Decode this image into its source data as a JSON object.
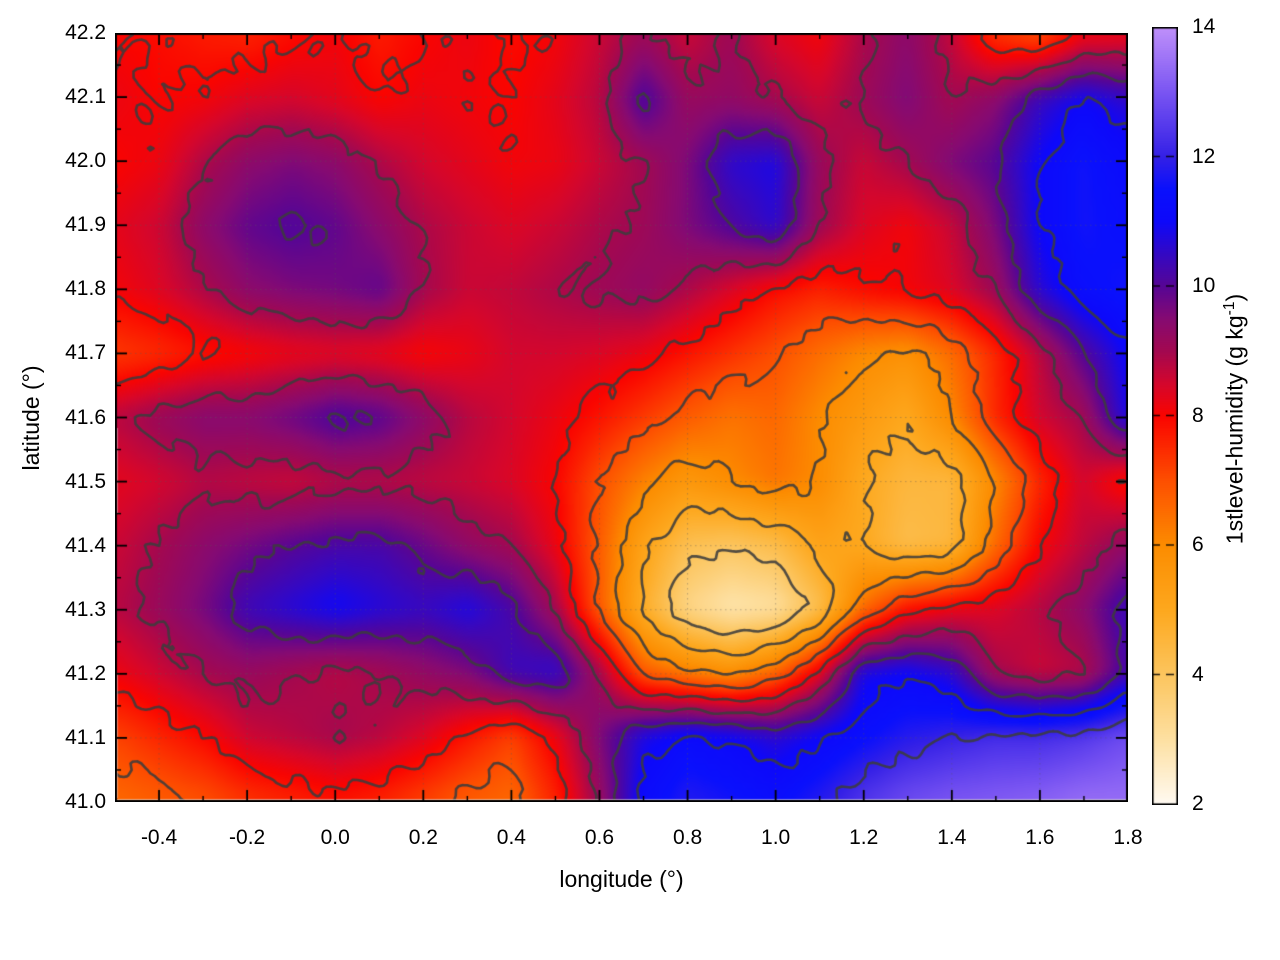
{
  "figure": {
    "background": "#ffffff"
  },
  "axes": {
    "xlabel": "longitude (°)",
    "ylabel": "latitude (°)",
    "xlim": [
      -0.5,
      1.8
    ],
    "ylim": [
      41.0,
      42.2
    ],
    "xticks": {
      "values": [
        -0.4,
        -0.2,
        0.0,
        0.2,
        0.4,
        0.6,
        0.8,
        1.0,
        1.2,
        1.4,
        1.6,
        1.8
      ],
      "labels": [
        "-0.4",
        "-0.2",
        "0.0",
        "0.2",
        "0.4",
        "0.6",
        "0.8",
        "1.0",
        "1.2",
        "1.4",
        "1.6",
        "1.8"
      ],
      "minor_step": 0.1
    },
    "yticks": {
      "values": [
        41.0,
        41.1,
        41.2,
        41.3,
        41.4,
        41.5,
        41.6,
        41.7,
        41.8,
        41.9,
        42.0,
        42.1,
        42.2
      ],
      "labels": [
        "41.0",
        "41.1",
        "41.2",
        "41.3",
        "41.4",
        "41.5",
        "41.6",
        "41.7",
        "41.8",
        "41.9",
        "42.0",
        "42.1",
        "42.2"
      ],
      "minor_step": 0.05
    },
    "grid_on": true
  },
  "colorbar": {
    "label_full": "1stlevel-humidity (g kg⁻¹)",
    "label_prefix": "1stlevel-humidity (g kg",
    "label_sup": "-1",
    "label_suffix": ")",
    "min": 2,
    "max": 14,
    "tick_values": [
      2,
      4,
      6,
      8,
      10,
      12,
      14
    ],
    "tick_labels": [
      "2",
      "4",
      "6",
      "8",
      "10",
      "12",
      "14"
    ]
  },
  "chart_data": {
    "type": "heatmap",
    "title": "",
    "xlabel": "longitude (°)",
    "ylabel": "latitude (°)",
    "value_label": "1stlevel-humidity (g kg⁻¹)",
    "x": [
      -0.5,
      -0.4,
      -0.3,
      -0.2,
      -0.1,
      0.0,
      0.1,
      0.2,
      0.3,
      0.4,
      0.5,
      0.6,
      0.7,
      0.8,
      0.9,
      1.0,
      1.1,
      1.2,
      1.3,
      1.4,
      1.5,
      1.6,
      1.7,
      1.8
    ],
    "y": [
      42.2,
      42.1,
      42.0,
      41.9,
      41.8,
      41.7,
      41.6,
      41.5,
      41.4,
      41.3,
      41.2,
      41.1,
      41.0
    ],
    "values": [
      [
        8.0,
        7.9,
        7.7,
        7.6,
        7.9,
        8.1,
        7.7,
        8.0,
        8.2,
        7.9,
        8.1,
        8.6,
        9.1,
        8.6,
        9.1,
        8.4,
        8.1,
        8.9,
        9.4,
        8.7,
        7.4,
        7.0,
        8.1,
        8.2
      ],
      [
        8.2,
        8.0,
        8.1,
        8.4,
        8.5,
        8.3,
        8.0,
        8.2,
        8.1,
        8.0,
        8.3,
        8.8,
        10.2,
        9.2,
        9.3,
        9.0,
        8.6,
        9.1,
        9.6,
        9.0,
        9.4,
        10.4,
        11.0,
        10.6
      ],
      [
        8.0,
        8.2,
        8.9,
        9.4,
        9.6,
        9.4,
        8.9,
        8.5,
        8.3,
        8.1,
        8.2,
        8.6,
        9.0,
        9.6,
        10.6,
        10.8,
        9.2,
        8.6,
        9.0,
        9.6,
        10.0,
        11.0,
        11.6,
        11.2
      ],
      [
        8.3,
        8.6,
        9.4,
        9.9,
        10.1,
        9.9,
        9.4,
        8.9,
        8.6,
        8.4,
        8.6,
        8.9,
        9.1,
        9.6,
        10.1,
        10.6,
        9.1,
        8.4,
        8.1,
        8.6,
        9.6,
        11.0,
        11.6,
        11.4
      ],
      [
        8.1,
        8.4,
        8.9,
        9.4,
        9.6,
        9.7,
        9.9,
        9.0,
        8.6,
        8.7,
        8.9,
        9.1,
        9.3,
        8.9,
        8.4,
        7.9,
        7.6,
        7.9,
        8.1,
        8.4,
        9.1,
        10.6,
        11.4,
        11.6
      ],
      [
        7.3,
        7.5,
        7.8,
        8.0,
        8.2,
        8.3,
        8.2,
        8.0,
        8.2,
        8.5,
        8.5,
        8.4,
        8.2,
        7.8,
        7.4,
        7.0,
        6.5,
        6.0,
        5.8,
        6.5,
        7.5,
        8.7,
        10.0,
        11.0
      ],
      [
        8.8,
        9.2,
        9.5,
        9.5,
        9.8,
        10.2,
        10.0,
        9.4,
        8.8,
        8.5,
        8.2,
        7.8,
        7.3,
        6.8,
        6.4,
        6.6,
        6.0,
        5.5,
        5.0,
        6.0,
        7.5,
        8.5,
        9.0,
        10.8
      ],
      [
        8.3,
        8.5,
        8.8,
        8.7,
        8.6,
        8.8,
        8.8,
        8.7,
        8.6,
        8.4,
        8.0,
        7.0,
        6.2,
        5.6,
        6.0,
        6.4,
        6.0,
        5.0,
        4.5,
        4.5,
        6.0,
        7.5,
        8.5,
        7.8
      ],
      [
        8.6,
        9.0,
        9.4,
        9.7,
        10.0,
        10.2,
        10.2,
        9.8,
        9.3,
        9.0,
        8.2,
        6.8,
        5.2,
        4.2,
        4.0,
        4.3,
        5.2,
        5.0,
        4.3,
        4.5,
        6.5,
        8.0,
        8.7,
        9.3
      ],
      [
        8.8,
        9.2,
        9.7,
        10.4,
        10.7,
        11.0,
        10.7,
        10.5,
        10.8,
        10.2,
        9.0,
        6.8,
        4.8,
        3.4,
        2.8,
        3.0,
        4.2,
        6.5,
        7.8,
        8.2,
        8.4,
        8.8,
        9.4,
        10.4
      ],
      [
        8.2,
        8.6,
        9.0,
        9.2,
        9.0,
        8.8,
        9.0,
        9.3,
        9.6,
        10.4,
        10.6,
        9.0,
        6.8,
        6.2,
        5.8,
        6.6,
        8.2,
        10.8,
        11.0,
        10.6,
        9.0,
        8.6,
        8.8,
        10.2
      ],
      [
        7.2,
        7.6,
        8.0,
        8.6,
        8.8,
        9.0,
        8.8,
        8.4,
        7.8,
        7.2,
        8.2,
        9.6,
        10.8,
        11.2,
        11.0,
        10.6,
        11.0,
        11.4,
        11.8,
        12.0,
        12.2,
        12.2,
        12.4,
        12.8
      ],
      [
        6.6,
        6.8,
        7.0,
        7.4,
        7.6,
        7.8,
        7.6,
        7.2,
        6.8,
        6.6,
        7.6,
        9.2,
        11.2,
        11.8,
        11.6,
        11.4,
        11.8,
        12.4,
        12.8,
        13.0,
        13.1,
        13.2,
        13.4,
        13.4
      ]
    ],
    "palette": [
      {
        "v": 2.0,
        "c": "#fffaf2"
      },
      {
        "v": 3.0,
        "c": "#fde0a2"
      },
      {
        "v": 4.0,
        "c": "#fcc55e"
      },
      {
        "v": 5.0,
        "c": "#fda81e"
      },
      {
        "v": 6.0,
        "c": "#fc8c00"
      },
      {
        "v": 7.0,
        "c": "#fd4f00"
      },
      {
        "v": 8.0,
        "c": "#fa0400"
      },
      {
        "v": 8.5,
        "c": "#d4062d"
      },
      {
        "v": 9.0,
        "c": "#a30850"
      },
      {
        "v": 9.5,
        "c": "#860a72"
      },
      {
        "v": 10.0,
        "c": "#570595"
      },
      {
        "v": 10.5,
        "c": "#3408c4"
      },
      {
        "v": 11.0,
        "c": "#0d08fa"
      },
      {
        "v": 11.5,
        "c": "#0a10fc"
      },
      {
        "v": 12.0,
        "c": "#3420e6"
      },
      {
        "v": 13.0,
        "c": "#7a55f2"
      },
      {
        "v": 14.0,
        "c": "#bf90fa"
      }
    ],
    "contours": {
      "levels": [
        3,
        4,
        5,
        6,
        7,
        8,
        9,
        10,
        11,
        12
      ],
      "color": "#3c3c3c",
      "width": 2.6
    }
  }
}
